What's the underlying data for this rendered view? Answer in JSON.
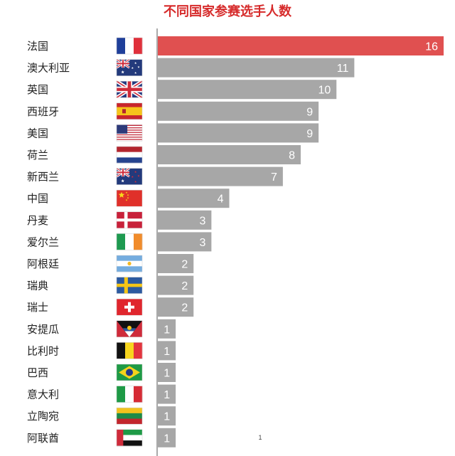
{
  "chart_data": {
    "type": "bar",
    "orientation": "horizontal",
    "title": "不同国家参赛选手人数",
    "categories": [
      "法国",
      "澳大利亚",
      "英国",
      "西班牙",
      "美国",
      "荷兰",
      "新西兰",
      "中国",
      "丹麦",
      "爱尔兰",
      "阿根廷",
      "瑞典",
      "瑞士",
      "安提瓜",
      "比利时",
      "巴西",
      "意大利",
      "立陶宛",
      "阿联酋"
    ],
    "values": [
      16,
      11,
      10,
      9,
      9,
      8,
      7,
      4,
      3,
      3,
      2,
      2,
      2,
      1,
      1,
      1,
      1,
      1,
      1
    ],
    "value_labels": [
      "16",
      "11",
      "10",
      "9",
      "9",
      "8",
      "7",
      "4",
      "3",
      "3",
      "2",
      "2",
      "2",
      "1",
      "1",
      "1",
      "1",
      "1",
      "1"
    ],
    "flags": [
      "france-flag",
      "australia-flag",
      "uk-flag",
      "spain-flag",
      "usa-flag",
      "netherlands-flag",
      "new-zealand-flag",
      "china-flag",
      "denmark-flag",
      "ireland-flag",
      "argentina-flag",
      "sweden-flag",
      "switzerland-flag",
      "antigua-flag",
      "belgium-flag",
      "brazil-flag",
      "italy-flag",
      "lithuania-flag",
      "uae-flag"
    ],
    "xlim": [
      0,
      16
    ],
    "grid": false,
    "highlight_index": 0,
    "colors": {
      "highlight_bar": "#e05050",
      "bar": "#a7a7a7",
      "title": "#d62b2b",
      "value_text": "#ffffff",
      "axis": "#555555"
    },
    "stray_mark": "1"
  }
}
